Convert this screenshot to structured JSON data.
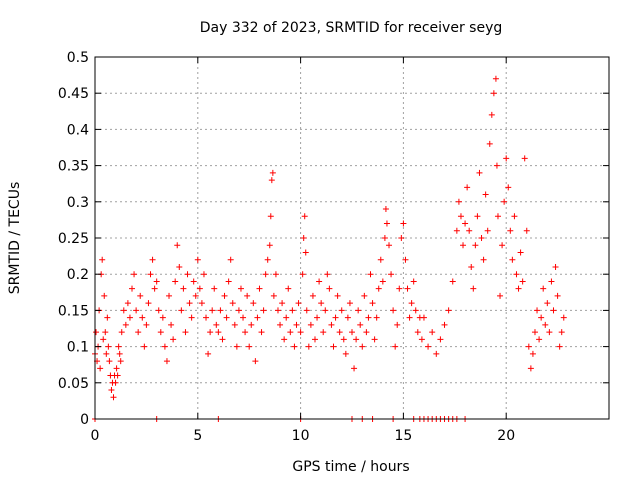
{
  "chart_data": {
    "type": "scatter",
    "title": "Day 332 of 2023, SRMTID for receiver seyg",
    "xlabel": "GPS time / hours",
    "ylabel": "SRMTID / TECUs",
    "xlim": [
      0,
      25
    ],
    "ylim": [
      0,
      0.5
    ],
    "xticks": [
      0,
      5,
      10,
      15,
      20
    ],
    "xtick_labels": [
      "0",
      "5",
      "10",
      "15",
      "20"
    ],
    "yticks": [
      0,
      0.05,
      0.1,
      0.15,
      0.2,
      0.25,
      0.3,
      0.35,
      0.4,
      0.45,
      0.5
    ],
    "ytick_labels": [
      "0",
      "0.05",
      "0.1",
      "0.15",
      "0.2",
      "0.25",
      "0.3",
      "0.35",
      "0.4",
      "0.45",
      "0.5"
    ],
    "grid": true,
    "marker": "+",
    "color": "#ff0000",
    "series": [
      {
        "name": "SRMTID",
        "points": [
          [
            0.0,
            0.09
          ],
          [
            0.05,
            0.12
          ],
          [
            0.1,
            0.08
          ],
          [
            0.15,
            0.1
          ],
          [
            0.2,
            0.15
          ],
          [
            0.25,
            0.07
          ],
          [
            0.3,
            0.2
          ],
          [
            0.35,
            0.22
          ],
          [
            0.4,
            0.11
          ],
          [
            0.45,
            0.17
          ],
          [
            0.5,
            0.12
          ],
          [
            0.55,
            0.09
          ],
          [
            0.6,
            0.14
          ],
          [
            0.65,
            0.1
          ],
          [
            0.7,
            0.08
          ],
          [
            0.75,
            0.06
          ],
          [
            0.8,
            0.04
          ],
          [
            0.85,
            0.05
          ],
          [
            0.9,
            0.03
          ],
          [
            0.95,
            0.06
          ],
          [
            1.0,
            0.05
          ],
          [
            1.05,
            0.07
          ],
          [
            1.1,
            0.06
          ],
          [
            1.15,
            0.1
          ],
          [
            1.2,
            0.09
          ],
          [
            1.25,
            0.08
          ],
          [
            1.3,
            0.12
          ],
          [
            1.4,
            0.15
          ],
          [
            1.5,
            0.13
          ],
          [
            1.6,
            0.16
          ],
          [
            1.7,
            0.14
          ],
          [
            1.8,
            0.18
          ],
          [
            1.9,
            0.2
          ],
          [
            2.0,
            0.15
          ],
          [
            2.1,
            0.12
          ],
          [
            2.2,
            0.17
          ],
          [
            2.3,
            0.14
          ],
          [
            2.4,
            0.1
          ],
          [
            2.5,
            0.13
          ],
          [
            2.6,
            0.16
          ],
          [
            2.7,
            0.2
          ],
          [
            2.8,
            0.22
          ],
          [
            2.9,
            0.18
          ],
          [
            3.0,
            0.19
          ],
          [
            3.1,
            0.15
          ],
          [
            3.2,
            0.12
          ],
          [
            3.3,
            0.14
          ],
          [
            3.4,
            0.1
          ],
          [
            3.5,
            0.08
          ],
          [
            3.6,
            0.17
          ],
          [
            3.7,
            0.13
          ],
          [
            3.8,
            0.11
          ],
          [
            3.9,
            0.19
          ],
          [
            4.0,
            0.24
          ],
          [
            4.1,
            0.21
          ],
          [
            4.2,
            0.15
          ],
          [
            4.3,
            0.18
          ],
          [
            4.4,
            0.12
          ],
          [
            4.5,
            0.2
          ],
          [
            4.6,
            0.16
          ],
          [
            4.7,
            0.14
          ],
          [
            4.8,
            0.19
          ],
          [
            4.9,
            0.17
          ],
          [
            5.0,
            0.22
          ],
          [
            5.1,
            0.18
          ],
          [
            5.2,
            0.16
          ],
          [
            5.3,
            0.2
          ],
          [
            5.4,
            0.14
          ],
          [
            5.5,
            0.09
          ],
          [
            5.6,
            0.12
          ],
          [
            5.7,
            0.15
          ],
          [
            5.8,
            0.18
          ],
          [
            5.9,
            0.13
          ],
          [
            6.0,
            0.12
          ],
          [
            6.1,
            0.15
          ],
          [
            6.2,
            0.11
          ],
          [
            6.3,
            0.17
          ],
          [
            6.4,
            0.14
          ],
          [
            6.5,
            0.19
          ],
          [
            6.6,
            0.22
          ],
          [
            6.7,
            0.16
          ],
          [
            6.8,
            0.13
          ],
          [
            6.9,
            0.1
          ],
          [
            7.0,
            0.15
          ],
          [
            7.1,
            0.18
          ],
          [
            7.2,
            0.14
          ],
          [
            7.3,
            0.12
          ],
          [
            7.4,
            0.17
          ],
          [
            7.5,
            0.1
          ],
          [
            7.6,
            0.13
          ],
          [
            7.7,
            0.16
          ],
          [
            7.8,
            0.08
          ],
          [
            7.9,
            0.14
          ],
          [
            8.0,
            0.18
          ],
          [
            8.1,
            0.12
          ],
          [
            8.2,
            0.15
          ],
          [
            8.3,
            0.2
          ],
          [
            8.4,
            0.22
          ],
          [
            8.5,
            0.24
          ],
          [
            8.55,
            0.28
          ],
          [
            8.6,
            0.33
          ],
          [
            8.65,
            0.34
          ],
          [
            8.7,
            0.17
          ],
          [
            8.8,
            0.2
          ],
          [
            8.9,
            0.15
          ],
          [
            9.0,
            0.13
          ],
          [
            9.1,
            0.16
          ],
          [
            9.2,
            0.11
          ],
          [
            9.3,
            0.14
          ],
          [
            9.4,
            0.18
          ],
          [
            9.5,
            0.12
          ],
          [
            9.6,
            0.15
          ],
          [
            9.7,
            0.1
          ],
          [
            9.8,
            0.13
          ],
          [
            9.9,
            0.16
          ],
          [
            10.0,
            0.12
          ],
          [
            10.1,
            0.2
          ],
          [
            10.15,
            0.25
          ],
          [
            10.2,
            0.28
          ],
          [
            10.25,
            0.23
          ],
          [
            10.3,
            0.15
          ],
          [
            10.4,
            0.1
          ],
          [
            10.5,
            0.13
          ],
          [
            10.6,
            0.17
          ],
          [
            10.7,
            0.11
          ],
          [
            10.8,
            0.14
          ],
          [
            10.9,
            0.19
          ],
          [
            11.0,
            0.16
          ],
          [
            11.1,
            0.12
          ],
          [
            11.2,
            0.15
          ],
          [
            11.3,
            0.2
          ],
          [
            11.4,
            0.18
          ],
          [
            11.5,
            0.13
          ],
          [
            11.6,
            0.1
          ],
          [
            11.7,
            0.14
          ],
          [
            11.8,
            0.17
          ],
          [
            11.9,
            0.12
          ],
          [
            12.0,
            0.15
          ],
          [
            12.1,
            0.11
          ],
          [
            12.2,
            0.09
          ],
          [
            12.3,
            0.14
          ],
          [
            12.4,
            0.16
          ],
          [
            12.5,
            0.12
          ],
          [
            12.6,
            0.07
          ],
          [
            12.7,
            0.11
          ],
          [
            12.8,
            0.15
          ],
          [
            12.9,
            0.13
          ],
          [
            13.0,
            0.1
          ],
          [
            13.1,
            0.17
          ],
          [
            13.2,
            0.12
          ],
          [
            13.3,
            0.14
          ],
          [
            13.4,
            0.2
          ],
          [
            13.5,
            0.16
          ],
          [
            13.6,
            0.11
          ],
          [
            13.7,
            0.14
          ],
          [
            13.8,
            0.18
          ],
          [
            13.9,
            0.22
          ],
          [
            14.0,
            0.19
          ],
          [
            14.1,
            0.25
          ],
          [
            14.15,
            0.29
          ],
          [
            14.2,
            0.27
          ],
          [
            14.3,
            0.24
          ],
          [
            14.4,
            0.2
          ],
          [
            14.5,
            0.15
          ],
          [
            14.6,
            0.1
          ],
          [
            14.7,
            0.13
          ],
          [
            14.8,
            0.18
          ],
          [
            14.9,
            0.25
          ],
          [
            15.0,
            0.27
          ],
          [
            15.1,
            0.22
          ],
          [
            15.2,
            0.18
          ],
          [
            15.3,
            0.14
          ],
          [
            15.4,
            0.16
          ],
          [
            15.5,
            0.19
          ],
          [
            15.6,
            0.15
          ],
          [
            15.7,
            0.12
          ],
          [
            15.8,
            0.14
          ],
          [
            15.9,
            0.11
          ],
          [
            16.0,
            0.14
          ],
          [
            16.2,
            0.1
          ],
          [
            16.4,
            0.12
          ],
          [
            16.6,
            0.09
          ],
          [
            16.8,
            0.11
          ],
          [
            17.0,
            0.13
          ],
          [
            17.2,
            0.15
          ],
          [
            17.4,
            0.19
          ],
          [
            17.6,
            0.26
          ],
          [
            17.7,
            0.3
          ],
          [
            17.8,
            0.28
          ],
          [
            17.9,
            0.24
          ],
          [
            18.0,
            0.27
          ],
          [
            18.1,
            0.32
          ],
          [
            18.2,
            0.26
          ],
          [
            18.3,
            0.21
          ],
          [
            18.4,
            0.18
          ],
          [
            18.5,
            0.24
          ],
          [
            18.6,
            0.28
          ],
          [
            18.7,
            0.34
          ],
          [
            18.8,
            0.25
          ],
          [
            18.9,
            0.22
          ],
          [
            19.0,
            0.31
          ],
          [
            19.1,
            0.26
          ],
          [
            19.2,
            0.38
          ],
          [
            19.3,
            0.42
          ],
          [
            19.4,
            0.45
          ],
          [
            19.5,
            0.47
          ],
          [
            19.55,
            0.35
          ],
          [
            19.6,
            0.28
          ],
          [
            19.7,
            0.17
          ],
          [
            19.8,
            0.24
          ],
          [
            19.9,
            0.3
          ],
          [
            20.0,
            0.36
          ],
          [
            20.1,
            0.32
          ],
          [
            20.2,
            0.26
          ],
          [
            20.3,
            0.22
          ],
          [
            20.4,
            0.28
          ],
          [
            20.5,
            0.2
          ],
          [
            20.6,
            0.18
          ],
          [
            20.7,
            0.23
          ],
          [
            20.8,
            0.19
          ],
          [
            20.9,
            0.36
          ],
          [
            21.0,
            0.26
          ],
          [
            21.1,
            0.1
          ],
          [
            21.2,
            0.07
          ],
          [
            21.3,
            0.09
          ],
          [
            21.4,
            0.12
          ],
          [
            21.5,
            0.15
          ],
          [
            21.6,
            0.11
          ],
          [
            21.7,
            0.14
          ],
          [
            21.8,
            0.18
          ],
          [
            21.9,
            0.13
          ],
          [
            22.0,
            0.16
          ],
          [
            22.1,
            0.12
          ],
          [
            22.2,
            0.19
          ],
          [
            22.3,
            0.15
          ],
          [
            22.4,
            0.21
          ],
          [
            22.5,
            0.17
          ],
          [
            22.6,
            0.1
          ],
          [
            22.7,
            0.12
          ],
          [
            22.8,
            0.14
          ],
          [
            0.0,
            0.0
          ],
          [
            3.0,
            0.0
          ],
          [
            6.0,
            0.0
          ],
          [
            10.0,
            0.0
          ],
          [
            12.5,
            0.0
          ],
          [
            13.0,
            0.0
          ],
          [
            13.5,
            0.0
          ],
          [
            14.5,
            0.0
          ],
          [
            15.5,
            0.0
          ],
          [
            15.8,
            0.0
          ],
          [
            16.0,
            0.0
          ],
          [
            16.2,
            0.0
          ],
          [
            16.4,
            0.0
          ],
          [
            16.6,
            0.0
          ],
          [
            16.8,
            0.0
          ],
          [
            17.0,
            0.0
          ],
          [
            17.2,
            0.0
          ],
          [
            17.4,
            0.0
          ],
          [
            17.6,
            0.0
          ],
          [
            18.0,
            0.0
          ]
        ]
      }
    ]
  }
}
